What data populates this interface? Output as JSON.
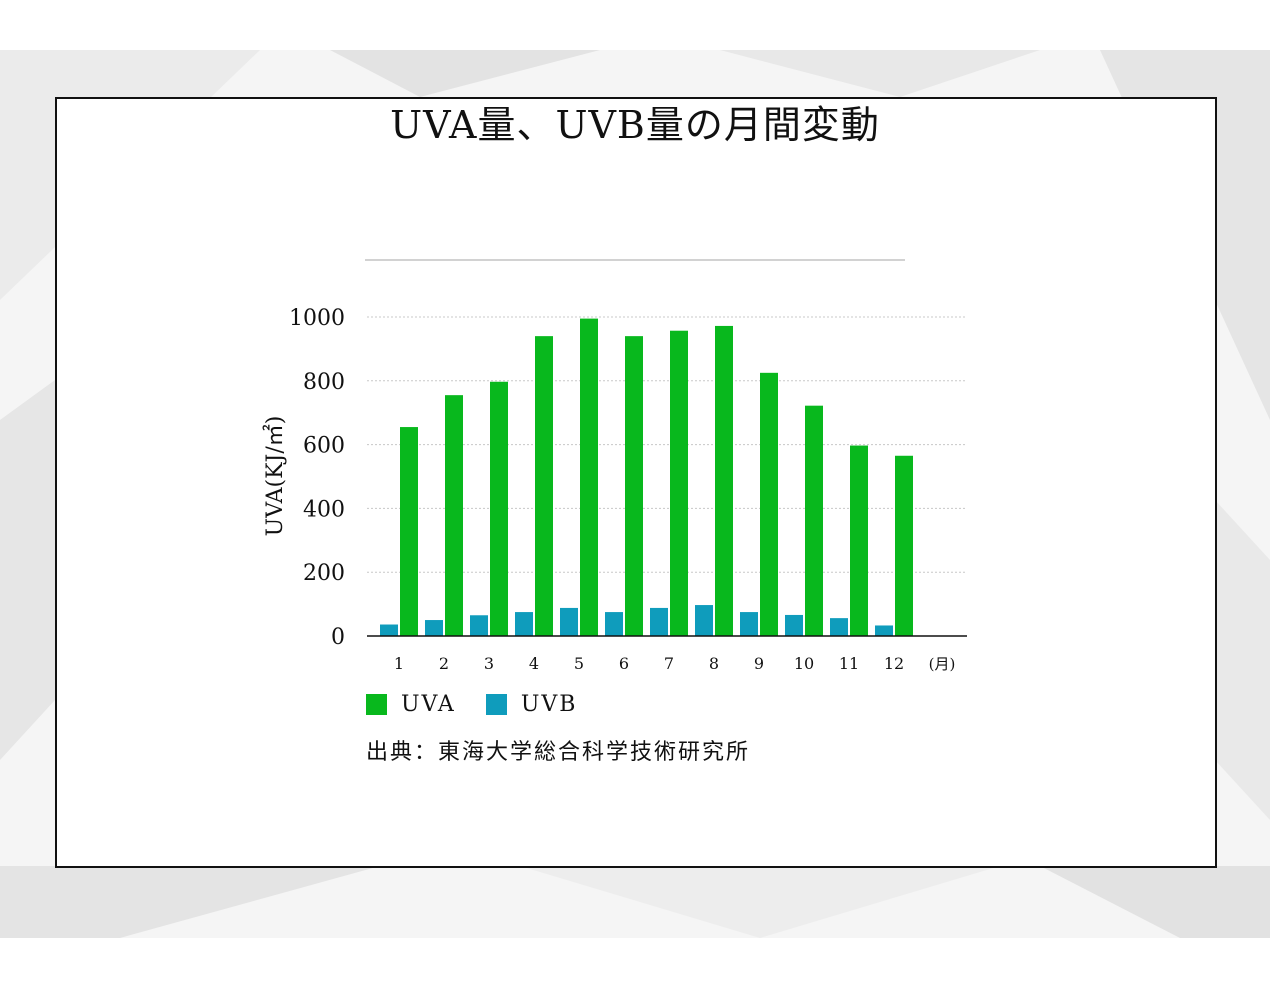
{
  "title": "UVA量、UVB量の月間変動",
  "source": "出典：東海大学総合科学技術研究所",
  "colors": {
    "uva": "#08b81d",
    "uvb": "#0f9cbc",
    "axis": "#111111",
    "grid": "#c8c8c8"
  },
  "chart_data": {
    "type": "bar",
    "categories": [
      "1",
      "2",
      "3",
      "4",
      "5",
      "6",
      "7",
      "8",
      "9",
      "10",
      "11",
      "12"
    ],
    "x_unit_label": "(月)",
    "ylabel": "UVA(KJ/㎡)",
    "ylim": [
      0,
      1000
    ],
    "yticks": [
      0,
      200,
      400,
      600,
      800,
      1000
    ],
    "grid": true,
    "legend_position": "bottom-left",
    "series": [
      {
        "name": "UVA",
        "values": [
          655,
          755,
          797,
          940,
          995,
          940,
          957,
          972,
          825,
          722,
          597,
          565
        ]
      },
      {
        "name": "UVB",
        "values": [
          36,
          50,
          65,
          75,
          88,
          75,
          88,
          97,
          75,
          66,
          56,
          33
        ]
      }
    ]
  }
}
